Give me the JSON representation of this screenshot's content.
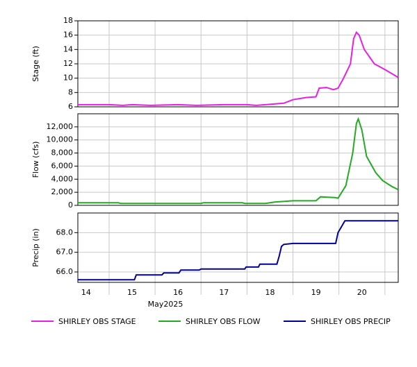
{
  "chart_data": [
    {
      "type": "line",
      "ylabel": "Stage (ft)",
      "xlim": [
        14.32,
        21.29
      ],
      "ylim": [
        6,
        18
      ],
      "yticks": [
        6,
        8,
        10,
        12,
        14,
        16,
        18
      ],
      "grid": true,
      "series": [
        {
          "name": "SHIRLEY OBS STAGE",
          "color": "#e81ee8",
          "x": [
            14.32,
            15.0,
            15.3,
            15.5,
            15.9,
            16.5,
            16.9,
            17.5,
            18.0,
            18.2,
            18.4,
            18.8,
            19.0,
            19.28,
            19.5,
            19.57,
            19.73,
            19.88,
            19.98,
            20.1,
            20.25,
            20.32,
            20.38,
            20.44,
            20.55,
            20.77,
            21.0,
            21.29
          ],
          "values": [
            6.3,
            6.3,
            6.2,
            6.3,
            6.2,
            6.3,
            6.2,
            6.3,
            6.3,
            6.2,
            6.3,
            6.5,
            7.0,
            7.3,
            7.4,
            8.6,
            8.7,
            8.4,
            8.6,
            10,
            12,
            15.5,
            16.4,
            16,
            14,
            12,
            11.2,
            10.1
          ]
        }
      ]
    },
    {
      "type": "line",
      "ylabel": "Flow (cfs)",
      "xlim": [
        14.32,
        21.29
      ],
      "ylim": [
        0,
        14000
      ],
      "yticks": [
        0,
        {
          "value": 2000,
          "label": "2,000"
        },
        {
          "value": 4000,
          "label": "4,000"
        },
        {
          "value": 6000,
          "label": "6,000"
        },
        {
          "value": 8000,
          "label": "8,000"
        },
        {
          "value": 10000,
          "label": "10,000"
        },
        {
          "value": 12000,
          "label": "12,000"
        }
      ],
      "grid": true,
      "series": [
        {
          "name": "SHIRLEY OBS FLOW",
          "color": "#22aa22",
          "x": [
            14.32,
            15.2,
            15.25,
            17.0,
            17.05,
            17.9,
            17.95,
            18.4,
            18.6,
            19.0,
            19.5,
            19.6,
            19.9,
            19.98,
            20.15,
            20.3,
            20.38,
            20.42,
            20.5,
            20.6,
            20.8,
            20.95,
            21.15,
            21.29
          ],
          "values": [
            400,
            400,
            300,
            300,
            400,
            400,
            300,
            300,
            500,
            700,
            700,
            1300,
            1200,
            1100,
            3000,
            8000,
            12500,
            13200,
            11500,
            7500,
            5000,
            3800,
            2900,
            2400
          ]
        }
      ]
    },
    {
      "type": "line",
      "ylabel": "Precip (in)",
      "xlim": [
        14.32,
        21.29
      ],
      "ylim": [
        65.47,
        69
      ],
      "yticks": [
        {
          "value": 66,
          "label": "66.0"
        },
        {
          "value": 67,
          "label": "67.0"
        },
        {
          "value": 68,
          "label": "68.0"
        }
      ],
      "grid": true,
      "xticks": [
        {
          "value": 14.5,
          "label": "14"
        },
        {
          "value": 15.5,
          "label": "15"
        },
        {
          "value": 16.5,
          "label": "16"
        },
        {
          "value": 17.5,
          "label": "17"
        },
        {
          "value": 18.5,
          "label": "18"
        },
        {
          "value": 19.5,
          "label": "19"
        },
        {
          "value": 20.5,
          "label": "20"
        }
      ],
      "xgrid_ticks": [
        15,
        16,
        17,
        18,
        19,
        20,
        21
      ],
      "xlabel": "May2025",
      "series": [
        {
          "name": "SHIRLEY OBS PRECIP",
          "color": "#000099",
          "x": [
            14.32,
            15.55,
            15.59,
            16.15,
            16.19,
            16.52,
            16.56,
            16.96,
            17.0,
            17.95,
            17.98,
            18.25,
            18.28,
            18.65,
            18.7,
            18.75,
            18.8,
            19.0,
            19.93,
            19.98,
            20.13,
            21.29
          ],
          "values": [
            65.6,
            65.6,
            65.85,
            65.85,
            65.95,
            65.95,
            66.1,
            66.1,
            66.15,
            66.15,
            66.25,
            66.25,
            66.4,
            66.4,
            66.8,
            67.3,
            67.4,
            67.45,
            67.45,
            68.0,
            68.6,
            68.6
          ]
        }
      ]
    }
  ]
}
